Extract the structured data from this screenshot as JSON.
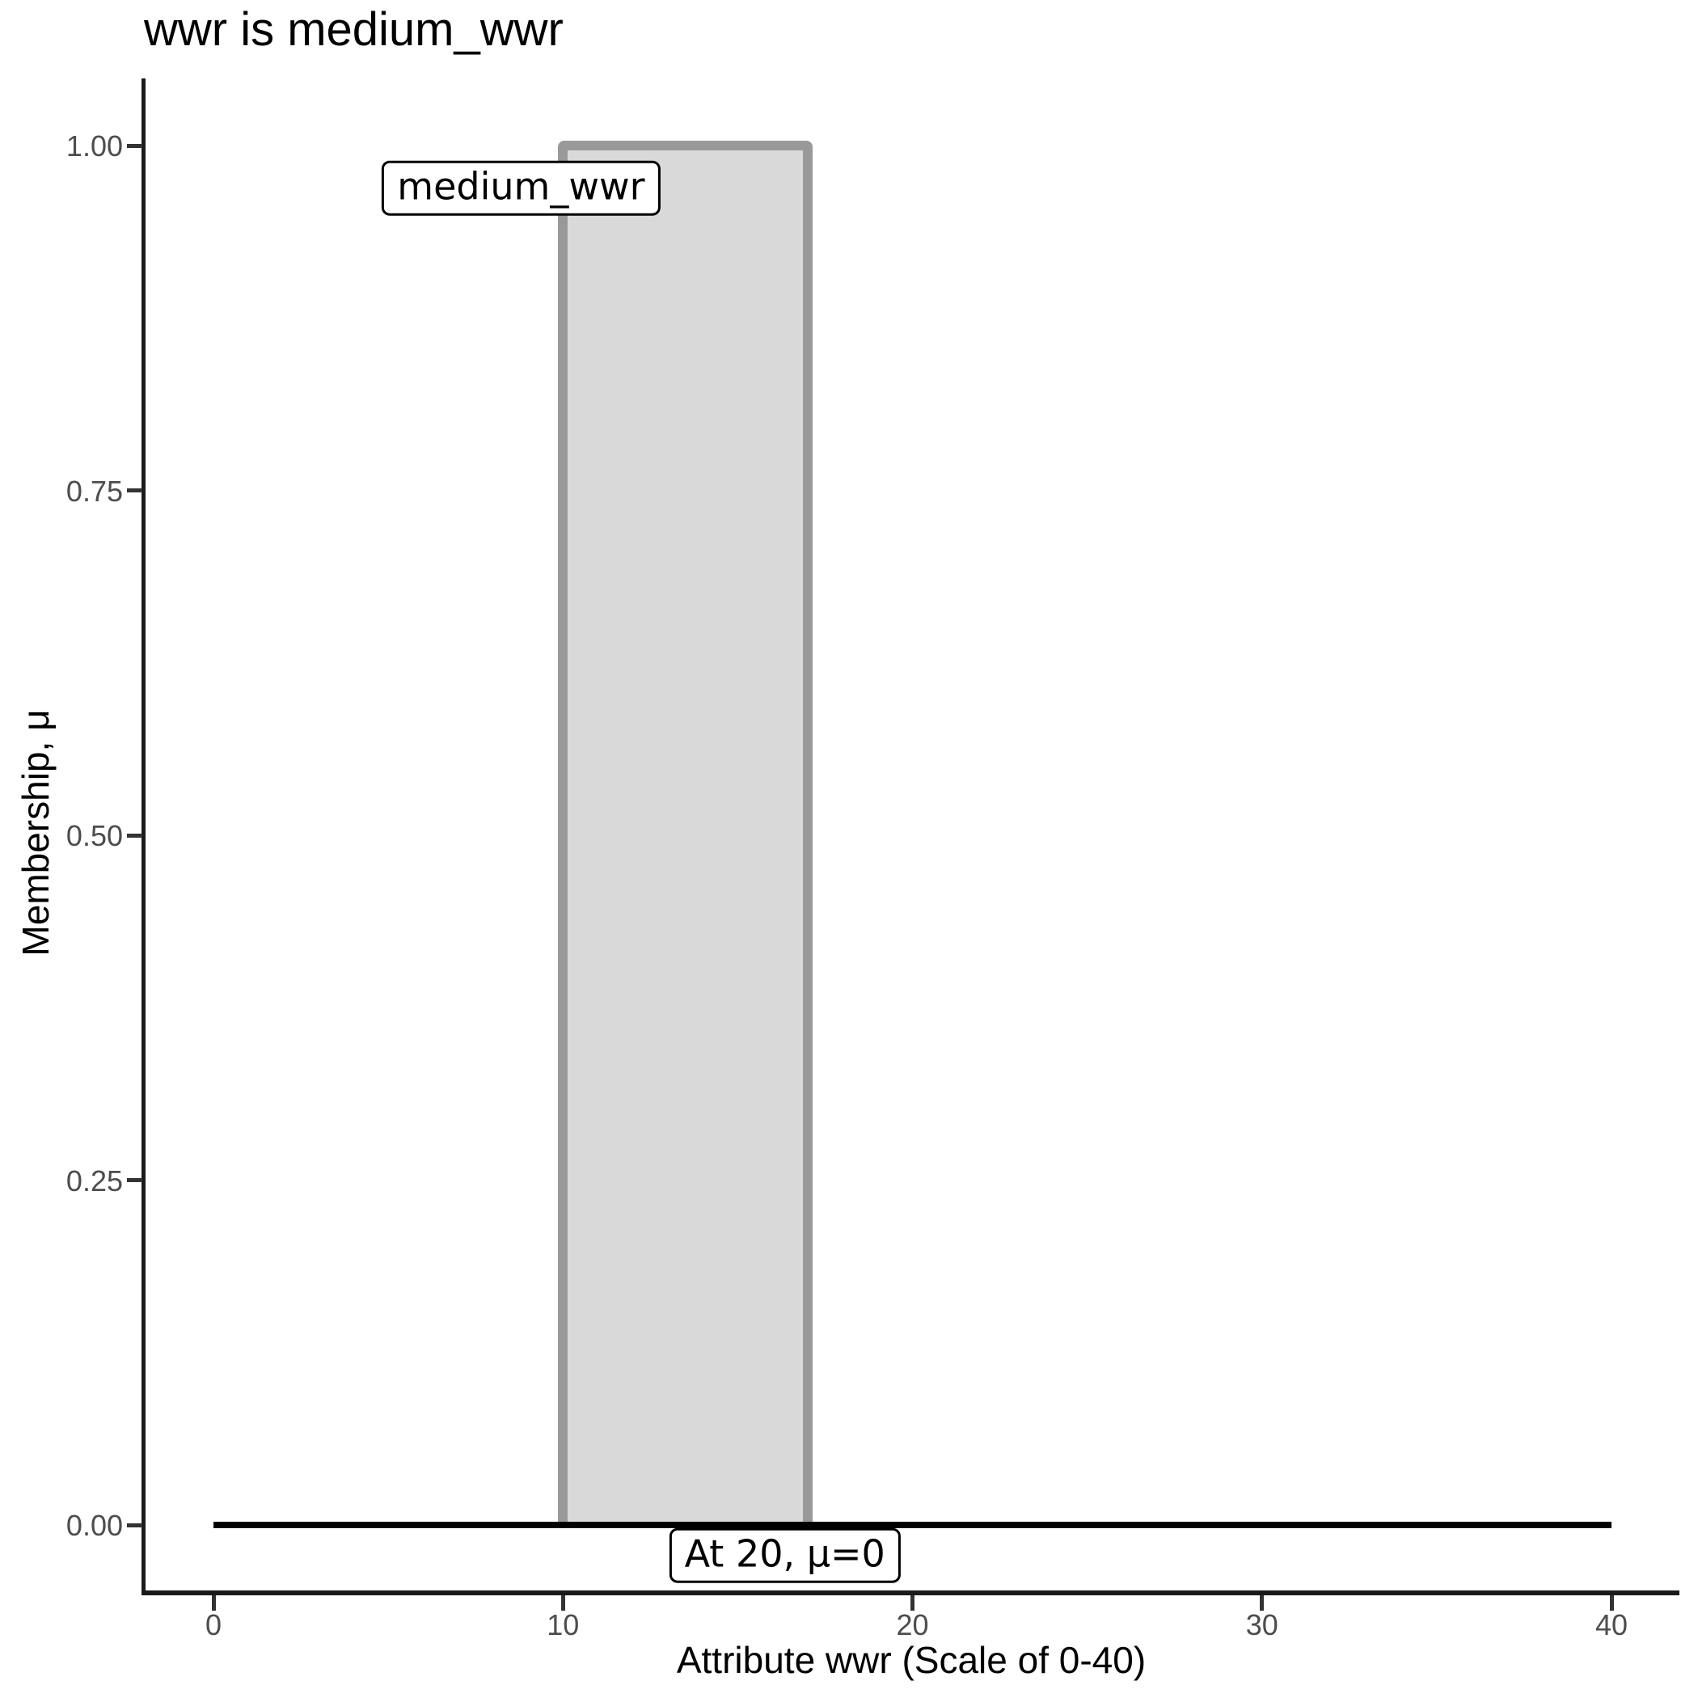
{
  "chart_data": {
    "type": "area",
    "title": "wwr is medium_wwr",
    "xlabel": "Attribute wwr (Scale of 0-40)",
    "ylabel": "Membership, μ",
    "xlim": [
      0,
      40
    ],
    "ylim": [
      0.0,
      1.0
    ],
    "grid": false,
    "legend": false,
    "x_ticks": [
      {
        "label": "0",
        "value": 0
      },
      {
        "label": "10",
        "value": 10
      },
      {
        "label": "20",
        "value": 20
      },
      {
        "label": "30",
        "value": 30
      },
      {
        "label": "40",
        "value": 40
      }
    ],
    "y_ticks": [
      {
        "label": "0.00",
        "value": 0.0
      },
      {
        "label": "0.25",
        "value": 0.25
      },
      {
        "label": "0.50",
        "value": 0.5
      },
      {
        "label": "0.75",
        "value": 0.75
      },
      {
        "label": "1.00",
        "value": 1.0
      }
    ],
    "membership_function": {
      "name": "medium_wwr",
      "shape": "rectangle",
      "points": [
        [
          10,
          0
        ],
        [
          10,
          1
        ],
        [
          17,
          1
        ],
        [
          17,
          0
        ]
      ],
      "fill": "#d9d9d9",
      "stroke": "#999999"
    },
    "activation_line": {
      "value_at": 20,
      "mu": 0,
      "x_start": 0,
      "x_end": 40,
      "color": "#000000"
    },
    "annotations": [
      {
        "id": "set-name-label",
        "text": "medium_wwr",
        "x": 8.8,
        "mu": 0.969
      },
      {
        "id": "eval-point-label",
        "text": "At 20, μ=0",
        "x": 16.35,
        "mu": -0.022
      }
    ],
    "colors": {
      "axis": "#1a1a1a",
      "tick_text": "#4d4d4d",
      "title_text": "#000000",
      "fill": "#d9d9d9",
      "stroke": "#999999",
      "activation": "#000000"
    }
  }
}
